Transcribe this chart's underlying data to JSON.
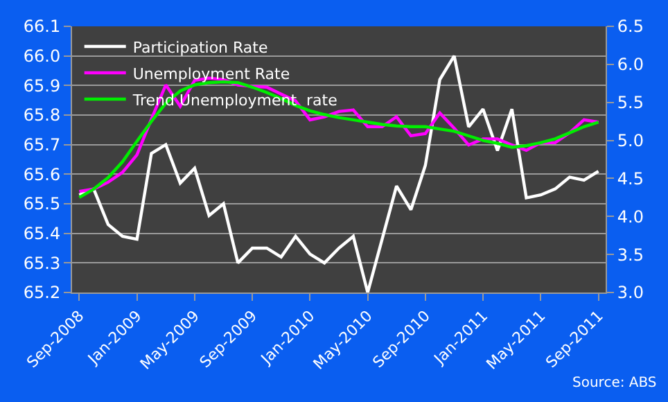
{
  "chart_data": {
    "type": "line",
    "categories": [
      "Sep-2008",
      null,
      null,
      null,
      "Jan-2009",
      null,
      null,
      null,
      "May-2009",
      null,
      null,
      null,
      "Sep-2009",
      null,
      null,
      null,
      "Jan-2010",
      null,
      null,
      null,
      "May-2010",
      null,
      null,
      null,
      "Sep-2010",
      null,
      null,
      null,
      "Jan-2011",
      null,
      null,
      null,
      "May-2011",
      null,
      null,
      null,
      "Sep-2011"
    ],
    "series": [
      {
        "name": "Participation Rate",
        "color": "#ffffff",
        "axis": "y",
        "values": [
          65.53,
          65.55,
          65.43,
          65.39,
          65.38,
          65.67,
          65.7,
          65.57,
          65.62,
          65.46,
          65.5,
          65.3,
          65.35,
          65.35,
          65.32,
          65.39,
          65.33,
          65.3,
          65.35,
          65.39,
          65.2,
          65.38,
          65.56,
          65.48,
          65.63,
          65.92,
          66.0,
          65.76,
          65.82,
          65.68,
          65.82,
          65.52,
          65.53,
          65.55,
          65.59,
          65.58,
          65.61
        ]
      },
      {
        "name": "Unemployment Rate",
        "color": "#ff00ff",
        "axis": "y2",
        "values": [
          4.33,
          4.36,
          4.45,
          4.58,
          4.81,
          5.28,
          5.73,
          5.45,
          5.79,
          5.82,
          5.8,
          5.73,
          5.71,
          5.7,
          5.61,
          5.52,
          5.27,
          5.31,
          5.38,
          5.4,
          5.18,
          5.18,
          5.31,
          5.06,
          5.09,
          5.36,
          5.16,
          4.94,
          5.02,
          5.02,
          4.94,
          4.87,
          4.97,
          4.97,
          5.1,
          5.27,
          5.24
        ]
      },
      {
        "name": "Trend Unemployment  rate",
        "color": "#00ee00",
        "axis": "y2",
        "values": [
          4.25,
          4.36,
          4.51,
          4.72,
          4.99,
          5.25,
          5.49,
          5.65,
          5.73,
          5.76,
          5.77,
          5.76,
          5.7,
          5.63,
          5.55,
          5.46,
          5.39,
          5.34,
          5.3,
          5.27,
          5.24,
          5.21,
          5.19,
          5.18,
          5.18,
          5.15,
          5.12,
          5.06,
          5.0,
          4.96,
          4.91,
          4.93,
          4.97,
          5.02,
          5.1,
          5.18,
          5.24
        ]
      }
    ],
    "ylim": [
      65.2,
      66.1
    ],
    "yticks": [
      65.2,
      65.3,
      65.4,
      65.5,
      65.6,
      65.7,
      65.8,
      65.9,
      {
        "value": 66.0,
        "label": "66.0"
      },
      66.1
    ],
    "y2lim": [
      3.0,
      6.5
    ],
    "y2ticks": [
      {
        "value": 3.0,
        "label": "3.0"
      },
      3.5,
      {
        "value": 4.0,
        "label": "4.0"
      },
      4.5,
      {
        "value": 5.0,
        "label": "5.0"
      },
      5.5,
      {
        "value": 6.0,
        "label": "6.0"
      },
      6.5
    ],
    "grid": "y",
    "legend": "top left",
    "marker": "none",
    "line_style": "solid",
    "annotations": [
      "Source: ABS"
    ]
  }
}
